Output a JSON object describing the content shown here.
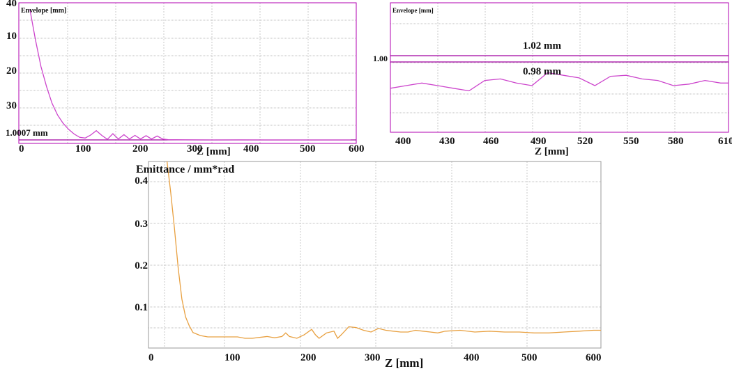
{
  "chart_data": [
    {
      "type": "line",
      "ylabel": "Envelope [mm]",
      "xlabel": "Z [mm]",
      "xlim": [
        0,
        610
      ],
      "ylim": [
        0,
        42
      ],
      "x_ticks": [
        "0",
        "100",
        "200",
        "300",
        "400",
        "500",
        "600"
      ],
      "y_ticks": [
        "10",
        "20",
        "30",
        "40"
      ],
      "annotation": "1.0007 mm",
      "reference_line_y": 1.0007,
      "grid": true,
      "series": [
        {
          "color": "#cc44cc",
          "x": [
            20,
            30,
            40,
            50,
            60,
            70,
            80,
            90,
            100,
            110,
            120,
            130,
            140,
            150,
            160,
            170,
            180,
            190,
            200,
            210,
            220,
            230,
            240,
            250,
            260,
            270,
            300,
            350,
            400,
            450,
            500,
            550,
            600
          ],
          "y": [
            40,
            31,
            23,
            17,
            12,
            8.5,
            6,
            4.2,
            2.8,
            1.8,
            1.6,
            2.5,
            3.8,
            2.4,
            1.2,
            2.9,
            1.3,
            2.6,
            1.3,
            2.4,
            1.3,
            2.3,
            1.3,
            2.2,
            1.3,
            1.1,
            1.05,
            1.02,
            1.03,
            1.02,
            1.02,
            1.02,
            1.02
          ]
        }
      ]
    },
    {
      "type": "line",
      "ylabel": "Envelope [mm]",
      "xlabel": "Z [mm]",
      "xlim": [
        400,
        615
      ],
      "ylim": [
        0.9,
        1.15
      ],
      "x_ticks": [
        "400",
        "430",
        "460",
        "490",
        "520",
        "550",
        "580",
        "610"
      ],
      "y_ticks": [
        "1.00"
      ],
      "annotations": [
        "1.02 mm",
        "0.98 mm"
      ],
      "reference_lines_y": [
        1.02,
        0.98
      ],
      "grid": true,
      "series": [
        {
          "color": "#cc44cc",
          "x": [
            400,
            410,
            420,
            430,
            440,
            450,
            460,
            470,
            480,
            490,
            500,
            510,
            520,
            530,
            540,
            550,
            560,
            570,
            580,
            590,
            600,
            610,
            615
          ],
          "y": [
            0.985,
            0.99,
            0.995,
            0.99,
            0.985,
            0.98,
            1.0,
            1.003,
            0.995,
            0.99,
            1.015,
            1.01,
            1.005,
            0.99,
            1.008,
            1.01,
            1.003,
            1.0,
            0.99,
            0.993,
            1.0,
            0.995,
            0.995
          ]
        }
      ]
    },
    {
      "type": "line",
      "ylabel": "Emittance / mm*rad",
      "xlabel": "Z [mm]",
      "xlim": [
        0,
        610
      ],
      "ylim": [
        0,
        0.42
      ],
      "x_ticks": [
        "0",
        "100",
        "200",
        "300",
        "400",
        "500",
        "600"
      ],
      "y_ticks": [
        "0.1",
        "0.2",
        "0.3",
        "0.4"
      ],
      "grid": true,
      "series": [
        {
          "color": "#e8a040",
          "x": [
            25,
            30,
            35,
            40,
            45,
            50,
            55,
            60,
            70,
            80,
            90,
            100,
            110,
            120,
            130,
            140,
            150,
            160,
            170,
            180,
            185,
            190,
            200,
            210,
            220,
            225,
            230,
            240,
            250,
            255,
            260,
            270,
            280,
            290,
            300,
            310,
            320,
            330,
            340,
            350,
            360,
            370,
            380,
            390,
            400,
            420,
            440,
            460,
            480,
            500,
            520,
            540,
            560,
            580,
            600,
            610
          ],
          "y": [
            0.42,
            0.35,
            0.27,
            0.18,
            0.11,
            0.07,
            0.05,
            0.035,
            0.028,
            0.025,
            0.025,
            0.025,
            0.025,
            0.025,
            0.022,
            0.022,
            0.024,
            0.026,
            0.023,
            0.026,
            0.034,
            0.026,
            0.022,
            0.03,
            0.042,
            0.03,
            0.022,
            0.034,
            0.038,
            0.022,
            0.03,
            0.048,
            0.046,
            0.04,
            0.036,
            0.044,
            0.04,
            0.038,
            0.036,
            0.036,
            0.04,
            0.038,
            0.036,
            0.034,
            0.038,
            0.04,
            0.036,
            0.038,
            0.036,
            0.036,
            0.034,
            0.034,
            0.036,
            0.038,
            0.04,
            0.04
          ]
        }
      ]
    }
  ]
}
